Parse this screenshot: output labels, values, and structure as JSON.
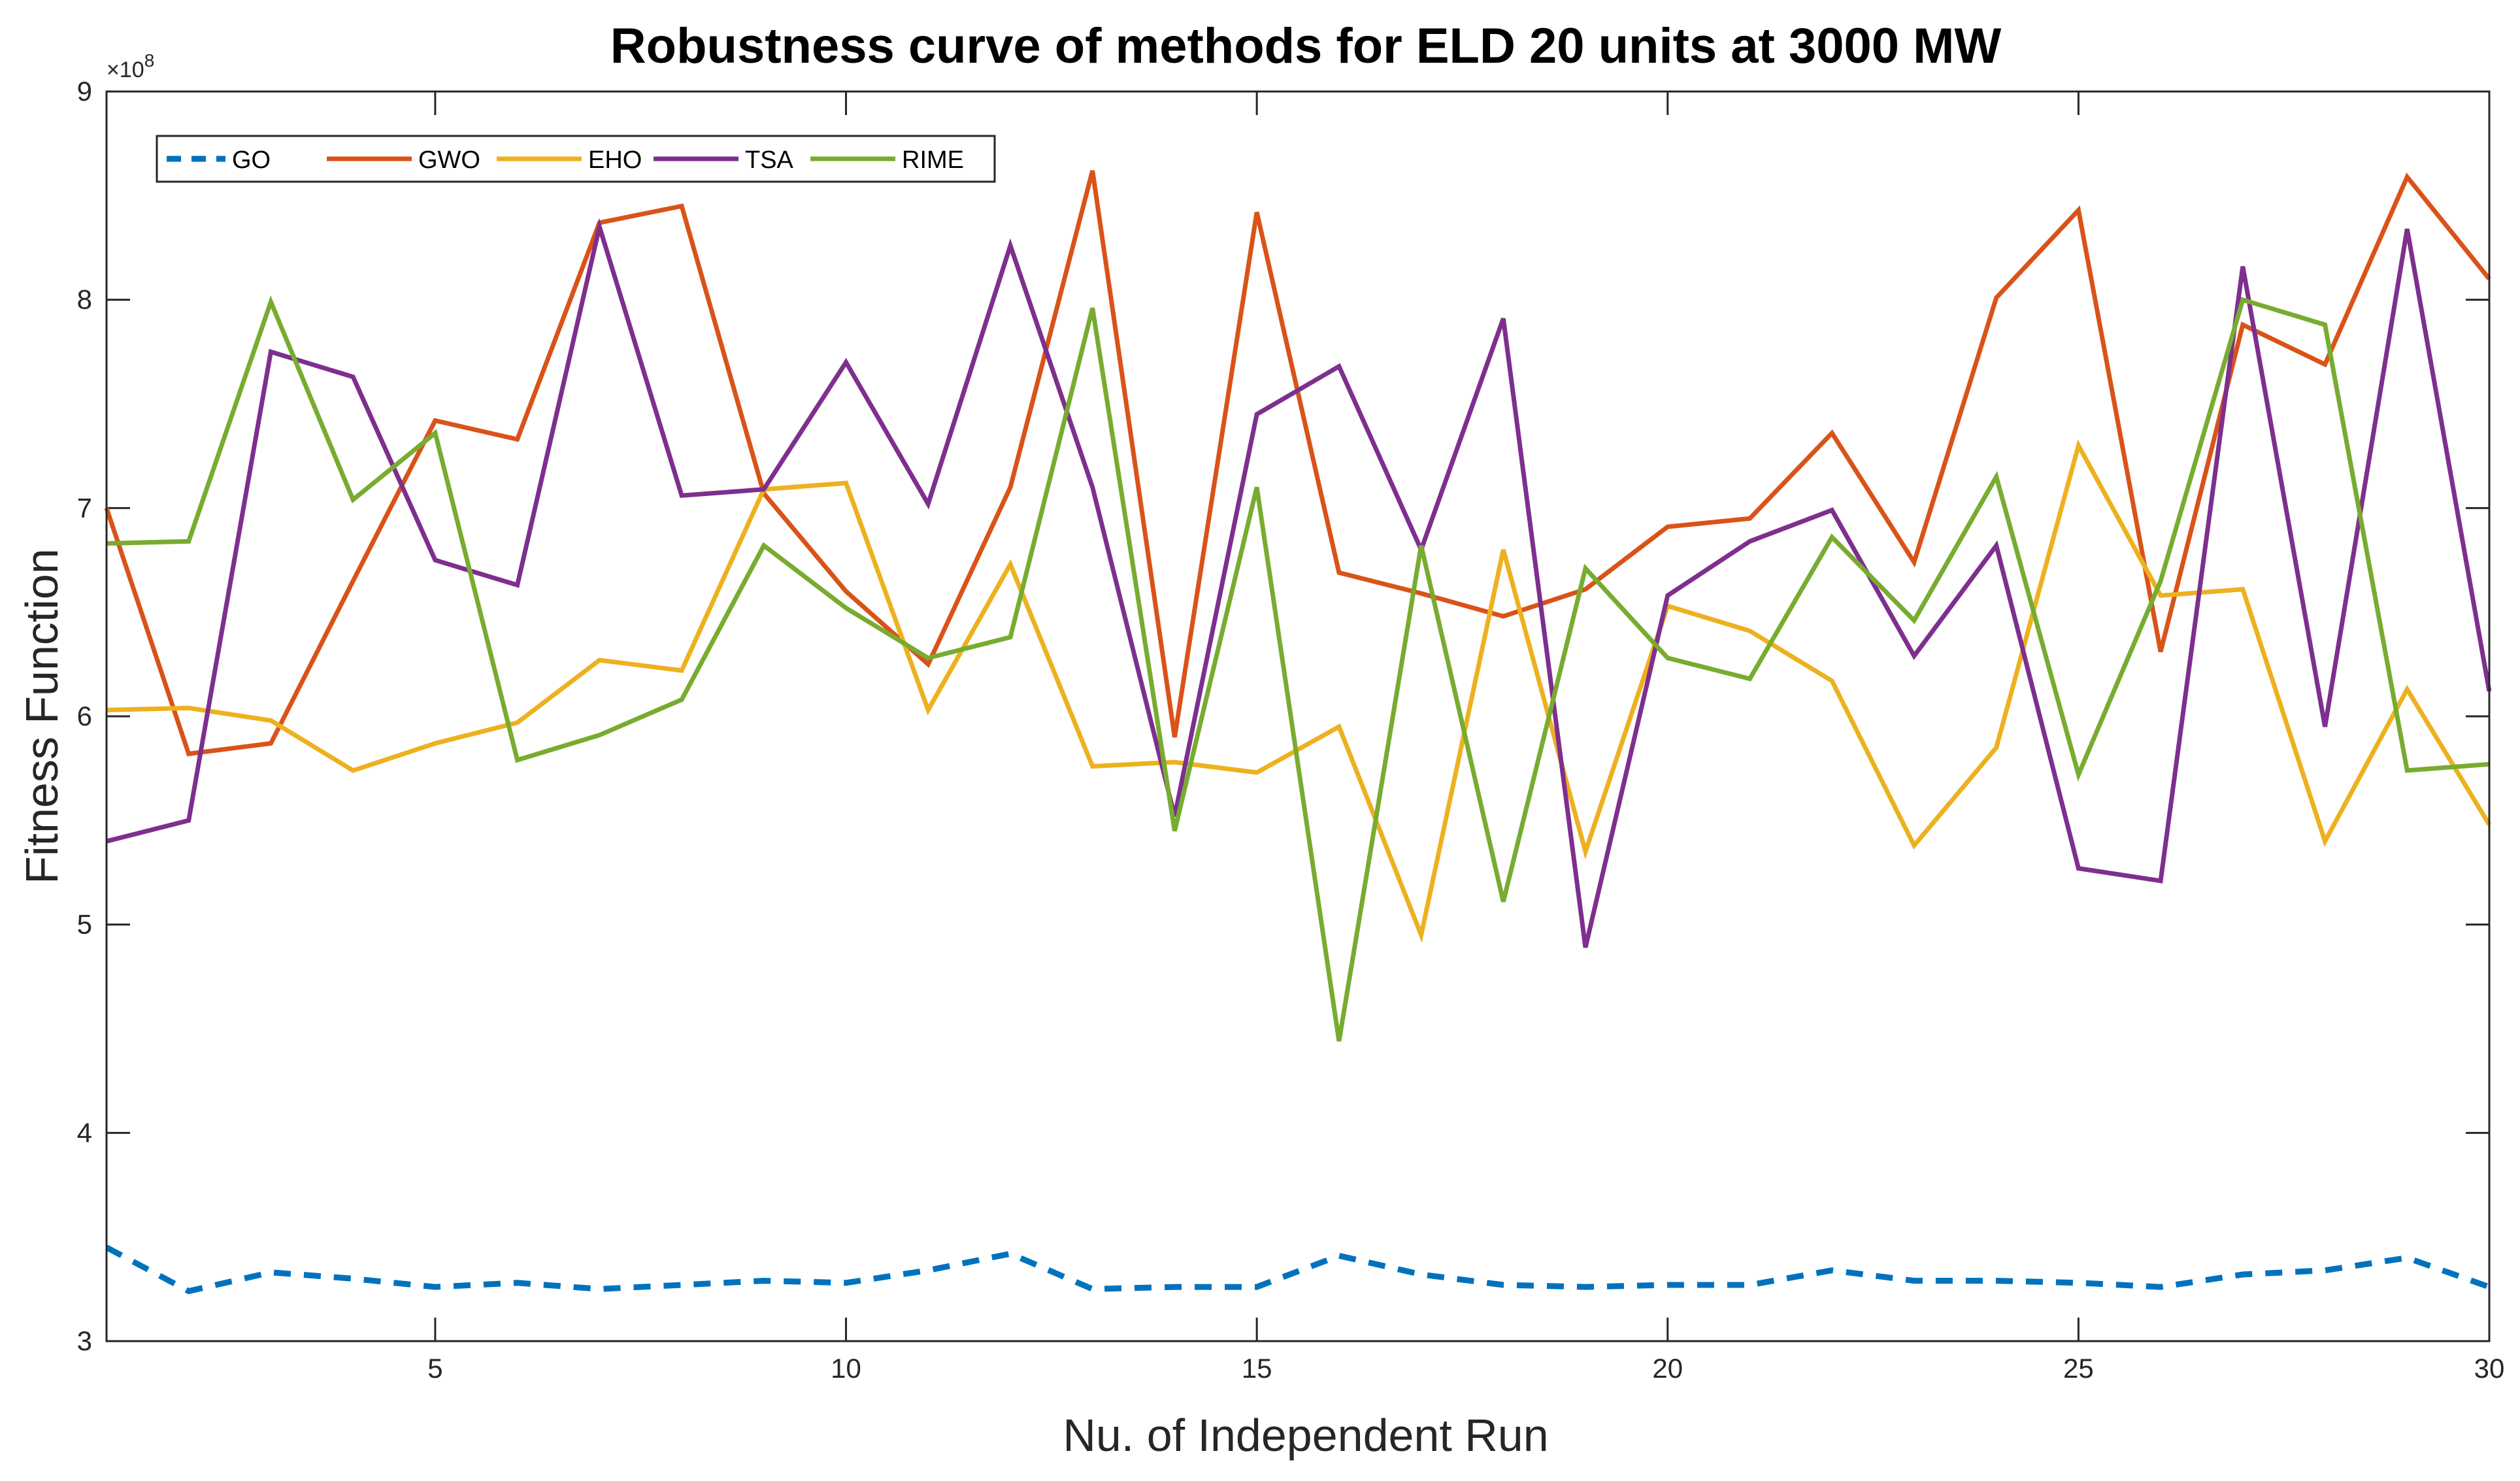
{
  "chart_data": {
    "type": "line",
    "title": "Robustness curve of methods for ELD 20 units at 3000 MW",
    "xlabel": "Nu. of Independent Run",
    "ylabel": "Fitness Function",
    "y_exponent_base": "×10",
    "y_exponent_power": "8",
    "xlim": [
      1,
      30
    ],
    "ylim": [
      3,
      9
    ],
    "xticks": [
      5,
      10,
      15,
      20,
      25,
      30
    ],
    "yticks": [
      3,
      4,
      5,
      6,
      7,
      8,
      9
    ],
    "legend_position": "top-left",
    "x": [
      1,
      2,
      3,
      4,
      5,
      6,
      7,
      8,
      9,
      10,
      11,
      12,
      13,
      14,
      15,
      16,
      17,
      18,
      19,
      20,
      21,
      22,
      23,
      24,
      25,
      26,
      27,
      28,
      29,
      30
    ],
    "series": [
      {
        "name": "GO",
        "color": "#0072BD",
        "dashed": true,
        "values": [
          3.45,
          3.24,
          3.33,
          3.3,
          3.26,
          3.28,
          3.25,
          3.27,
          3.29,
          3.28,
          3.34,
          3.42,
          3.25,
          3.26,
          3.26,
          3.41,
          3.32,
          3.27,
          3.26,
          3.27,
          3.27,
          3.34,
          3.29,
          3.29,
          3.28,
          3.26,
          3.32,
          3.34,
          3.4,
          3.26
        ]
      },
      {
        "name": "GWO",
        "color": "#D95319",
        "dashed": false,
        "values": [
          7.0,
          5.82,
          5.87,
          6.65,
          7.42,
          7.33,
          8.37,
          8.45,
          7.07,
          6.6,
          6.25,
          7.1,
          8.62,
          5.9,
          8.42,
          6.69,
          6.59,
          6.48,
          6.61,
          6.91,
          6.95,
          7.36,
          6.74,
          8.01,
          8.43,
          6.31,
          7.88,
          7.69,
          8.59,
          8.1
        ]
      },
      {
        "name": "EHO",
        "color": "#EDB120",
        "dashed": false,
        "values": [
          6.03,
          6.04,
          5.98,
          5.74,
          5.87,
          5.97,
          6.27,
          6.22,
          7.09,
          7.12,
          6.03,
          6.73,
          5.76,
          5.78,
          5.73,
          5.95,
          4.95,
          6.8,
          5.35,
          6.53,
          6.41,
          6.17,
          5.38,
          5.85,
          7.3,
          6.58,
          6.61,
          5.4,
          6.13,
          5.48
        ]
      },
      {
        "name": "TSA",
        "color": "#7E2F8E",
        "dashed": false,
        "values": [
          5.4,
          5.5,
          7.75,
          7.63,
          6.75,
          6.63,
          8.35,
          7.06,
          7.09,
          7.7,
          7.02,
          8.26,
          7.1,
          5.52,
          7.45,
          7.68,
          6.8,
          7.91,
          4.89,
          6.58,
          6.84,
          6.99,
          6.29,
          6.82,
          5.27,
          5.21,
          8.16,
          5.95,
          8.34,
          6.12
        ]
      },
      {
        "name": "RIME",
        "color": "#77AC30",
        "dashed": false,
        "values": [
          6.83,
          6.84,
          7.99,
          7.04,
          7.36,
          5.79,
          5.91,
          6.08,
          6.82,
          6.52,
          6.28,
          6.38,
          7.96,
          5.45,
          7.1,
          4.44,
          6.82,
          5.11,
          6.71,
          6.28,
          6.18,
          6.86,
          6.46,
          7.15,
          5.72,
          6.65,
          8.0,
          7.88,
          5.74,
          5.77
        ]
      }
    ]
  }
}
